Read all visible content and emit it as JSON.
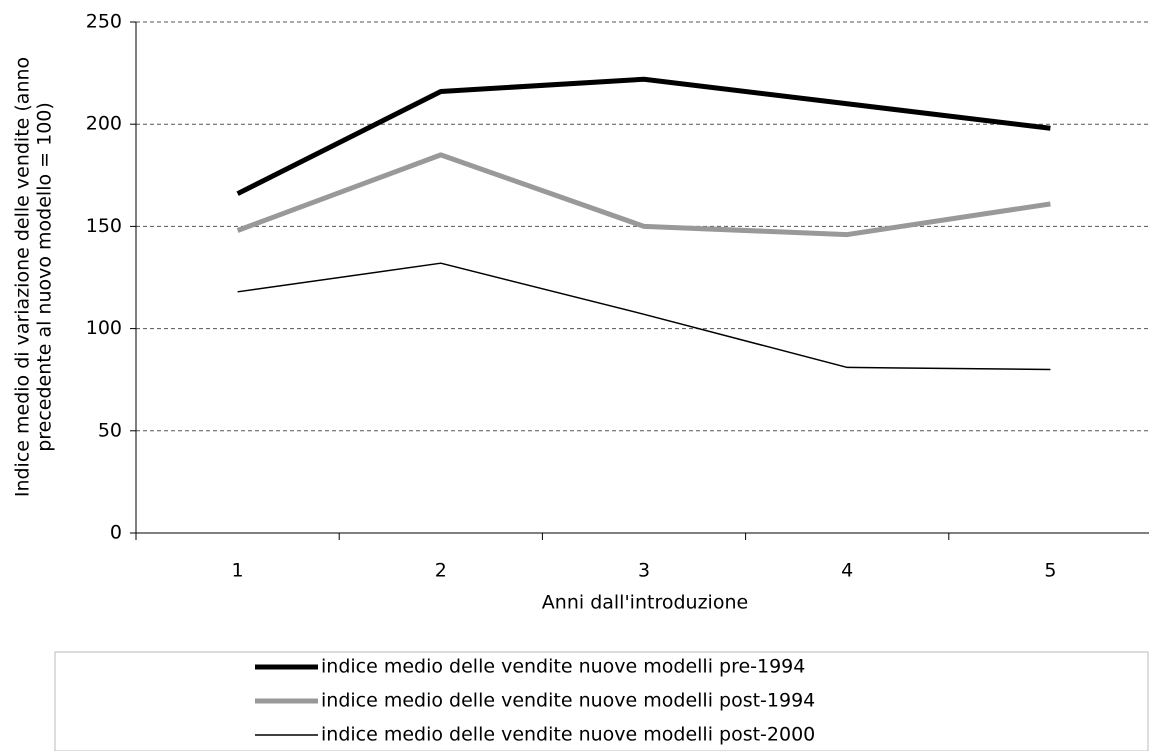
{
  "chart_data": {
    "type": "line",
    "ylabel": [
      "Indice medio di variazione delle vendite (anno",
      "precedente al  nuovo modello = 100)"
    ],
    "xlabel": "Anni dall'introduzione",
    "categories": [
      "1",
      "2",
      "3",
      "4",
      "5"
    ],
    "series": [
      {
        "name": "indice medio delle vendite nuove modelli pre-1994",
        "color": "#000000",
        "width": 5,
        "values": [
          166,
          216,
          222,
          210,
          198
        ]
      },
      {
        "name": "indice medio delle vendite nuove modelli post-1994",
        "color": "#999999",
        "width": 5,
        "values": [
          148,
          185,
          150,
          146,
          161
        ]
      },
      {
        "name": "indice medio delle vendite nuove modelli post-2000",
        "color": "#000000",
        "width": 1.5,
        "values": [
          118,
          132,
          107,
          81,
          80
        ]
      }
    ],
    "ylim": [
      0,
      250
    ],
    "yticks": [
      0,
      50,
      100,
      150,
      200,
      250
    ],
    "grid": true
  }
}
